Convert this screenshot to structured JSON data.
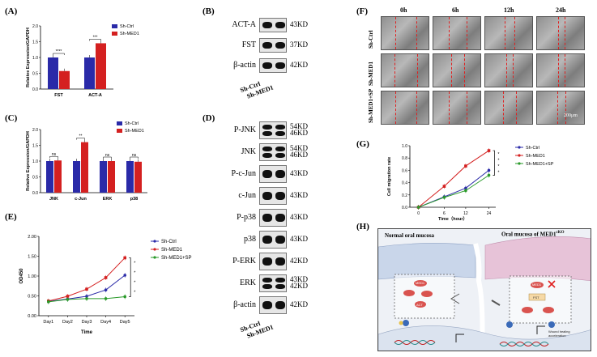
{
  "panels": {
    "A": "(A)",
    "B": "(B)",
    "C": "(C)",
    "D": "(D)",
    "E": "(E)",
    "F": "(F)",
    "G": "(G)",
    "H": "(H)"
  },
  "colors": {
    "ctrl": "#2a2aa8",
    "med1": "#d42020",
    "sp": "#2a9a2a"
  },
  "chart_data": [
    {
      "id": "A",
      "type": "bar",
      "ylabel": "Relative Expression/GAPDH",
      "categories": [
        "FST",
        "ACT-A"
      ],
      "ylim": [
        0,
        2.0
      ],
      "yticks": [
        "0.0",
        "0.5",
        "1.0",
        "1.5",
        "2.0"
      ],
      "legend": [
        "Sh-Ctrl",
        "Sh-MED1"
      ],
      "series": [
        {
          "name": "Sh-Ctrl",
          "values": [
            1.0,
            1.0
          ]
        },
        {
          "name": "Sh-MED1",
          "values": [
            0.57,
            1.45
          ]
        }
      ],
      "significance": [
        "****",
        "***"
      ]
    },
    {
      "id": "C",
      "type": "bar",
      "ylabel": "Relative Expression/GAPDH",
      "categories": [
        "JNK",
        "c-Jun",
        "ERK",
        "p38"
      ],
      "ylim": [
        0,
        2.0
      ],
      "yticks": [
        "0.0",
        "0.5",
        "1.0",
        "1.5",
        "2.0"
      ],
      "legend": [
        "Sh-Ctrl",
        "Sh-MED1"
      ],
      "series": [
        {
          "name": "Sh-Ctrl",
          "values": [
            1.0,
            1.0,
            1.0,
            1.0
          ]
        },
        {
          "name": "Sh-MED1",
          "values": [
            1.02,
            1.6,
            1.0,
            0.98
          ]
        }
      ],
      "significance": [
        "ns",
        "**",
        "ns",
        "ns"
      ]
    },
    {
      "id": "E",
      "type": "line",
      "ylabel": "OD450",
      "xlabel": "Time",
      "categories": [
        "Day1",
        "Day2",
        "Day3",
        "Day4",
        "Day5"
      ],
      "ylim": [
        0,
        2.0
      ],
      "yticks": [
        "0.00",
        "0.50",
        "1.00",
        "1.50",
        "2.00"
      ],
      "series": [
        {
          "name": "Sh-Ctrl",
          "values": [
            0.36,
            0.42,
            0.49,
            0.65,
            1.02
          ]
        },
        {
          "name": "Sh-MED1",
          "values": [
            0.37,
            0.49,
            0.67,
            0.96,
            1.46
          ]
        },
        {
          "name": "Sh-MED1+SP",
          "values": [
            0.35,
            0.41,
            0.43,
            0.43,
            0.48
          ]
        }
      ],
      "significance": [
        "*",
        "*",
        "*",
        "*"
      ]
    },
    {
      "id": "G",
      "type": "line",
      "ylabel": "Cell migration rate",
      "xlabel": "Time（hour）",
      "categories": [
        "0",
        "6",
        "12",
        "24"
      ],
      "ylim": [
        0,
        1.0
      ],
      "yticks": [
        "0.0",
        "0.2",
        "0.4",
        "0.6",
        "0.8",
        "1.0"
      ],
      "series": [
        {
          "name": "Sh-Ctrl",
          "values": [
            0.0,
            0.17,
            0.31,
            0.6
          ]
        },
        {
          "name": "Sh-MED1",
          "values": [
            0.0,
            0.34,
            0.67,
            0.92
          ]
        },
        {
          "name": "Sh-MED1+SP",
          "values": [
            0.0,
            0.16,
            0.27,
            0.52
          ]
        }
      ],
      "significance": [
        "*",
        "*",
        "*",
        "*"
      ]
    }
  ],
  "blots_B": {
    "rows": [
      {
        "protein": "ACT-A",
        "kd": [
          "43KD"
        ]
      },
      {
        "protein": "FST",
        "kd": [
          "37KD"
        ]
      },
      {
        "protein": "β-actin",
        "kd": [
          "42KD"
        ]
      }
    ],
    "lanes": [
      "Sh-Ctrl",
      "Sh-MED1"
    ]
  },
  "blots_D": {
    "rows": [
      {
        "protein": "P-JNK",
        "kd": [
          "54KD",
          "46KD"
        ]
      },
      {
        "protein": "JNK",
        "kd": [
          "54KD",
          "46KD"
        ]
      },
      {
        "protein": "P-c-Jun",
        "kd": [
          "43KD"
        ]
      },
      {
        "protein": "c-Jun",
        "kd": [
          "43KD"
        ]
      },
      {
        "protein": "P-p38",
        "kd": [
          "43KD"
        ]
      },
      {
        "protein": "p38",
        "kd": [
          "43KD"
        ]
      },
      {
        "protein": "P-ERK",
        "kd": [
          "42KD"
        ]
      },
      {
        "protein": "ERK",
        "kd": [
          "43KD",
          "42KD"
        ]
      },
      {
        "protein": "β-actin",
        "kd": [
          "42KD"
        ]
      }
    ],
    "lanes": [
      "Sh-Ctrl",
      "Sh-MED1"
    ]
  },
  "wound_F": {
    "times": [
      "0h",
      "6h",
      "12h",
      "24h"
    ],
    "rows": [
      "Sh-Ctrl",
      "Sh-MED1",
      "Sh-MED1+SP"
    ],
    "scale": "200μm"
  },
  "schematic_H": {
    "left_title": "Normal oral mucosa",
    "right_title": "Oral mucosa of MED1",
    "right_title_sup": "cKO",
    "med1": "MED1",
    "fst": "FST",
    "act": "ACT",
    "wound": "Wound healing acceleration",
    "ellipsis": "..."
  }
}
